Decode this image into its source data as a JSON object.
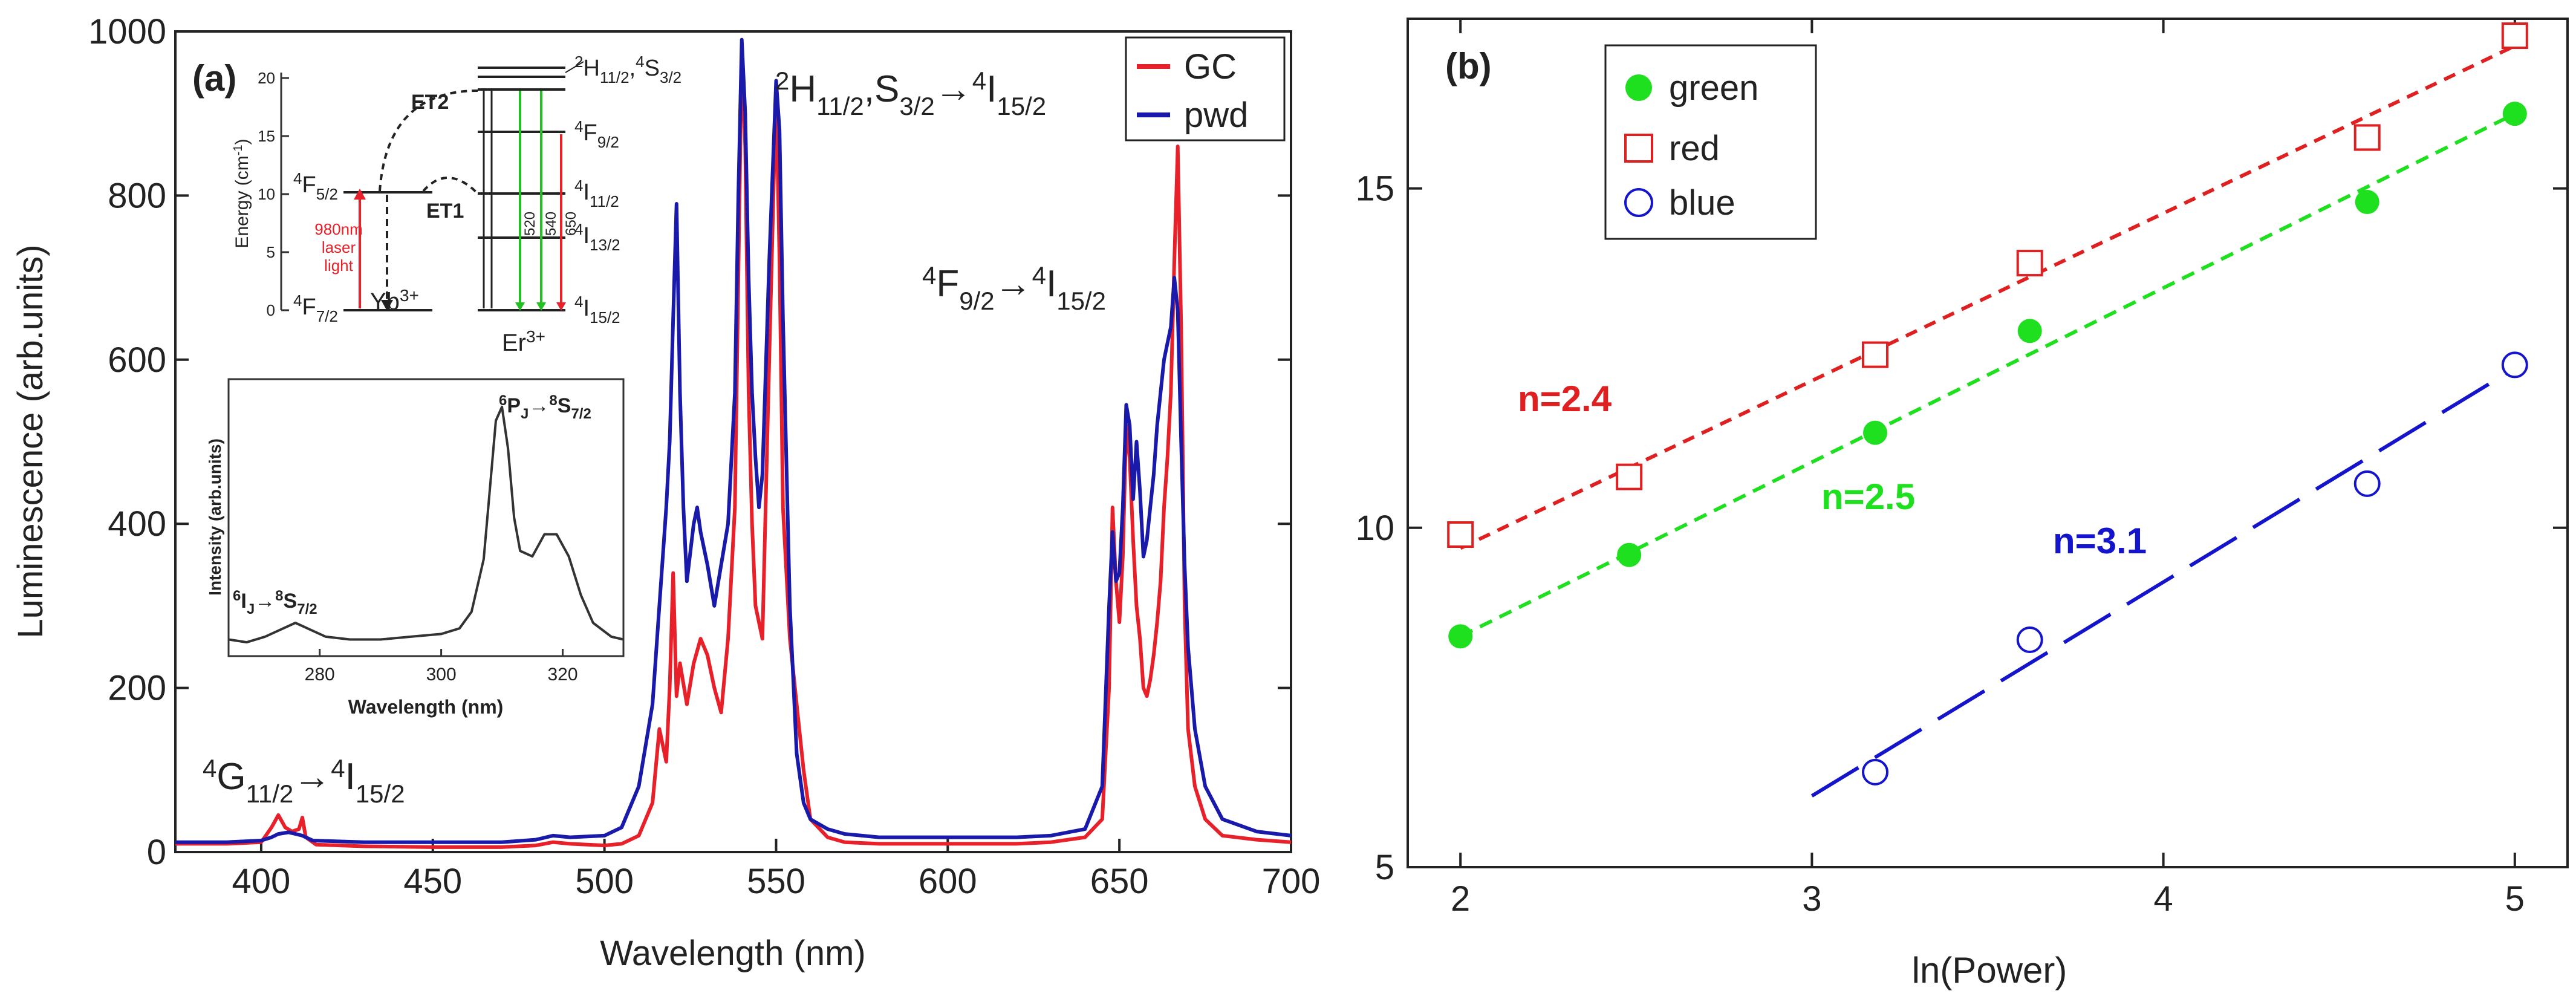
{
  "chart_data": [
    {
      "panel": "(a)",
      "type": "line",
      "xlabel": "Wavelength (nm)",
      "ylabel": "Luminescence (arb.units)",
      "xlim": [
        375,
        700
      ],
      "ylim": [
        0,
        1000
      ],
      "xticks": [
        400,
        450,
        500,
        550,
        600,
        650,
        700
      ],
      "yticks": [
        0,
        200,
        400,
        600,
        800,
        1000
      ],
      "legend": {
        "position": "top-right",
        "entries": [
          "GC",
          "pwd"
        ]
      },
      "annotations": {
        "g4": {
          "base1": "G",
          "sup1": "4",
          "sub1": "11/2",
          "arrow": "→",
          "sup2": "4",
          "base2": "I",
          "sub2": "15/2"
        },
        "h2": {
          "sup1": "2",
          "base1": "H",
          "sub1": "11/2",
          "mid": ",S",
          "sub2": "3/2",
          "arrow": "→",
          "sup3": "4",
          "base3": "I",
          "sub3": "15/2"
        },
        "f4": {
          "sup1": "4",
          "base1": "F",
          "sub1": "9/2",
          "arrow": "→",
          "sup2": "4",
          "base2": "I",
          "sub2": "15/2"
        }
      },
      "series": [
        {
          "name": "GC",
          "color": "#e8202a",
          "points": [
            [
              375,
              10
            ],
            [
              390,
              10
            ],
            [
              400,
              12
            ],
            [
              403,
              30
            ],
            [
              405,
              45
            ],
            [
              407,
              30
            ],
            [
              409,
              25
            ],
            [
              411,
              28
            ],
            [
              412,
              42
            ],
            [
              413,
              18
            ],
            [
              416,
              9
            ],
            [
              430,
              7
            ],
            [
              450,
              6
            ],
            [
              470,
              6
            ],
            [
              480,
              8
            ],
            [
              485,
              12
            ],
            [
              490,
              10
            ],
            [
              500,
              8
            ],
            [
              505,
              10
            ],
            [
              510,
              20
            ],
            [
              514,
              60
            ],
            [
              516,
              150
            ],
            [
              518,
              110
            ],
            [
              519,
              200
            ],
            [
              520,
              340
            ],
            [
              521,
              190
            ],
            [
              522,
              230
            ],
            [
              524,
              180
            ],
            [
              526,
              230
            ],
            [
              528,
              260
            ],
            [
              530,
              240
            ],
            [
              532,
              200
            ],
            [
              534,
              170
            ],
            [
              536,
              260
            ],
            [
              538,
              420
            ],
            [
              539,
              700
            ],
            [
              540,
              980
            ],
            [
              541,
              860
            ],
            [
              542,
              560
            ],
            [
              543,
              400
            ],
            [
              544,
              300
            ],
            [
              546,
              260
            ],
            [
              548,
              600
            ],
            [
              550,
              930
            ],
            [
              551,
              720
            ],
            [
              552,
              420
            ],
            [
              554,
              260
            ],
            [
              556,
              180
            ],
            [
              558,
              100
            ],
            [
              560,
              40
            ],
            [
              565,
              18
            ],
            [
              570,
              12
            ],
            [
              580,
              10
            ],
            [
              600,
              10
            ],
            [
              620,
              10
            ],
            [
              630,
              12
            ],
            [
              640,
              18
            ],
            [
              645,
              40
            ],
            [
              647,
              200
            ],
            [
              648,
              420
            ],
            [
              649,
              330
            ],
            [
              650,
              280
            ],
            [
              651,
              360
            ],
            [
              652,
              520
            ],
            [
              653,
              480
            ],
            [
              654,
              380
            ],
            [
              655,
              300
            ],
            [
              656,
              260
            ],
            [
              657,
              200
            ],
            [
              658,
              190
            ],
            [
              659,
              210
            ],
            [
              660,
              240
            ],
            [
              661,
              280
            ],
            [
              662,
              330
            ],
            [
              663,
              420
            ],
            [
              664,
              480
            ],
            [
              665,
              560
            ],
            [
              666,
              720
            ],
            [
              667,
              860
            ],
            [
              668,
              640
            ],
            [
              669,
              300
            ],
            [
              670,
              150
            ],
            [
              672,
              80
            ],
            [
              675,
              40
            ],
            [
              680,
              20
            ],
            [
              690,
              15
            ],
            [
              700,
              12
            ]
          ]
        },
        {
          "name": "pwd",
          "color": "#1a1aaa",
          "points": [
            [
              375,
              12
            ],
            [
              390,
              12
            ],
            [
              400,
              14
            ],
            [
              403,
              18
            ],
            [
              405,
              22
            ],
            [
              408,
              24
            ],
            [
              410,
              22
            ],
            [
              412,
              20
            ],
            [
              415,
              14
            ],
            [
              430,
              12
            ],
            [
              450,
              12
            ],
            [
              470,
              12
            ],
            [
              480,
              15
            ],
            [
              485,
              20
            ],
            [
              490,
              18
            ],
            [
              500,
              20
            ],
            [
              505,
              30
            ],
            [
              510,
              80
            ],
            [
              514,
              180
            ],
            [
              516,
              300
            ],
            [
              518,
              420
            ],
            [
              519,
              500
            ],
            [
              520,
              650
            ],
            [
              521,
              790
            ],
            [
              522,
              560
            ],
            [
              523,
              420
            ],
            [
              524,
              330
            ],
            [
              526,
              400
            ],
            [
              527,
              420
            ],
            [
              528,
              390
            ],
            [
              530,
              350
            ],
            [
              532,
              300
            ],
            [
              534,
              350
            ],
            [
              536,
              400
            ],
            [
              538,
              560
            ],
            [
              539,
              800
            ],
            [
              540,
              990
            ],
            [
              541,
              900
            ],
            [
              542,
              700
            ],
            [
              543,
              560
            ],
            [
              544,
              480
            ],
            [
              545,
              420
            ],
            [
              546,
              460
            ],
            [
              548,
              720
            ],
            [
              550,
              940
            ],
            [
              551,
              880
            ],
            [
              552,
              650
            ],
            [
              554,
              300
            ],
            [
              556,
              120
            ],
            [
              558,
              60
            ],
            [
              560,
              40
            ],
            [
              565,
              28
            ],
            [
              570,
              22
            ],
            [
              580,
              18
            ],
            [
              600,
              18
            ],
            [
              620,
              18
            ],
            [
              630,
              20
            ],
            [
              640,
              28
            ],
            [
              645,
              80
            ],
            [
              647,
              300
            ],
            [
              648,
              390
            ],
            [
              649,
              330
            ],
            [
              650,
              340
            ],
            [
              651,
              420
            ],
            [
              652,
              545
            ],
            [
              653,
              520
            ],
            [
              654,
              430
            ],
            [
              655,
              500
            ],
            [
              656,
              440
            ],
            [
              657,
              360
            ],
            [
              658,
              380
            ],
            [
              659,
              420
            ],
            [
              660,
              460
            ],
            [
              661,
              520
            ],
            [
              662,
              560
            ],
            [
              663,
              600
            ],
            [
              664,
              620
            ],
            [
              665,
              640
            ],
            [
              666,
              700
            ],
            [
              667,
              660
            ],
            [
              668,
              500
            ],
            [
              669,
              350
            ],
            [
              670,
              250
            ],
            [
              672,
              150
            ],
            [
              675,
              80
            ],
            [
              680,
              40
            ],
            [
              690,
              25
            ],
            [
              700,
              20
            ]
          ]
        }
      ]
    },
    {
      "panel": "energy-level inset",
      "type": "diagram",
      "ylabel": "Energy (cm",
      "ylabel_sup": "-1",
      "ylabel_close": ")",
      "yticks": [
        "0",
        "5",
        "10",
        "15",
        "20"
      ],
      "ions": [
        "Yb",
        "Er"
      ],
      "ion_charge": "3+",
      "yb_levels": {
        "f52": {
          "sup": "4",
          "base": "F",
          "sub": "5/2"
        },
        "f72": {
          "sup": "4",
          "base": "F",
          "sub": "7/2"
        }
      },
      "er_levels": {
        "h": {
          "sup": "2",
          "base": "H",
          "sub": "11/2",
          "mid": ",",
          "sup2": "4",
          "base2": "S",
          "sub2": "3/2"
        },
        "f92": {
          "sup": "4",
          "base": "F",
          "sub": "9/2"
        },
        "i112": {
          "sup": "4",
          "base": "I",
          "sub": "11/2"
        },
        "i132": {
          "sup": "4",
          "base": "I",
          "sub": "13/2"
        },
        "i152": {
          "sup": "4",
          "base": "I",
          "sub": "15/2"
        }
      },
      "laser_lines": [
        "980nm",
        "laser",
        "light"
      ],
      "transfers": [
        "ET2",
        "ET1"
      ],
      "emission_wavelengths": [
        "520",
        "540",
        "650"
      ]
    },
    {
      "panel": "Gd inset",
      "type": "line",
      "xlabel": "Wavelength (nm)",
      "ylabel": "Intensity (arb.units)",
      "xlim": [
        265,
        330
      ],
      "ylim": [
        0,
        1
      ],
      "xticks": [
        280,
        300,
        320
      ],
      "annotations": {
        "pj": {
          "sup": "6",
          "base": "P",
          "sub": "J",
          "arrow": "→",
          "sup2": "8",
          "base2": "S",
          "sub2": "7/2"
        },
        "ij": {
          "sup": "6",
          "base": "I",
          "sub": "J",
          "arrow": "→",
          "sup2": "8",
          "base2": "S",
          "sub2": "7/2"
        }
      },
      "series": [
        {
          "name": "Gd emission",
          "color": "#333333",
          "points": [
            [
              265,
              0.06
            ],
            [
              268,
              0.05
            ],
            [
              271,
              0.07
            ],
            [
              274,
              0.1
            ],
            [
              276,
              0.12
            ],
            [
              278,
              0.1
            ],
            [
              281,
              0.07
            ],
            [
              285,
              0.06
            ],
            [
              290,
              0.06
            ],
            [
              295,
              0.07
            ],
            [
              300,
              0.08
            ],
            [
              303,
              0.1
            ],
            [
              305,
              0.16
            ],
            [
              307,
              0.35
            ],
            [
              308,
              0.6
            ],
            [
              309,
              0.85
            ],
            [
              310,
              0.9
            ],
            [
              311,
              0.75
            ],
            [
              312,
              0.5
            ],
            [
              313,
              0.38
            ],
            [
              315,
              0.36
            ],
            [
              316,
              0.4
            ],
            [
              317,
              0.44
            ],
            [
              319,
              0.44
            ],
            [
              321,
              0.36
            ],
            [
              323,
              0.22
            ],
            [
              325,
              0.12
            ],
            [
              328,
              0.07
            ],
            [
              330,
              0.06
            ]
          ]
        }
      ]
    },
    {
      "panel": "(b)",
      "type": "scatter",
      "xlabel": "ln(Power)",
      "ylabel": "",
      "xlim": [
        1.85,
        5.15
      ],
      "ylim": [
        5,
        17.5
      ],
      "xticks": [
        2,
        3,
        4,
        5
      ],
      "yticks": [
        5,
        10,
        15
      ],
      "legend": {
        "position": "top-left",
        "entries": [
          "green",
          "red",
          "blue"
        ]
      },
      "series": [
        {
          "name": "green",
          "color": "#1ee01e",
          "marker": "filled-circle",
          "x": [
            2.0,
            2.48,
            3.18,
            3.62,
            4.58,
            5.0
          ],
          "y": [
            8.4,
            9.6,
            11.4,
            12.9,
            14.8,
            16.1
          ],
          "fit": {
            "x": [
              2.0,
              5.0
            ],
            "y": [
              8.4,
              16.1
            ]
          },
          "slope_label": "n=2.5"
        },
        {
          "name": "red",
          "color": "#e02020",
          "marker": "open-square",
          "x": [
            2.0,
            2.48,
            3.18,
            3.62,
            4.58,
            5.0
          ],
          "y": [
            9.9,
            10.75,
            12.55,
            13.9,
            15.75,
            17.25
          ],
          "fit": {
            "x": [
              2.0,
              5.0
            ],
            "y": [
              9.7,
              17.1
            ]
          },
          "slope_label": "n=2.4"
        },
        {
          "name": "blue",
          "color": "#1414cc",
          "marker": "open-circle",
          "x": [
            3.18,
            3.62,
            4.58,
            5.0
          ],
          "y": [
            6.4,
            8.35,
            10.65,
            12.4
          ],
          "fit": {
            "x": [
              3.0,
              5.0
            ],
            "y": [
              6.05,
              12.35
            ]
          },
          "slope_label": "n=3.1"
        }
      ]
    }
  ]
}
